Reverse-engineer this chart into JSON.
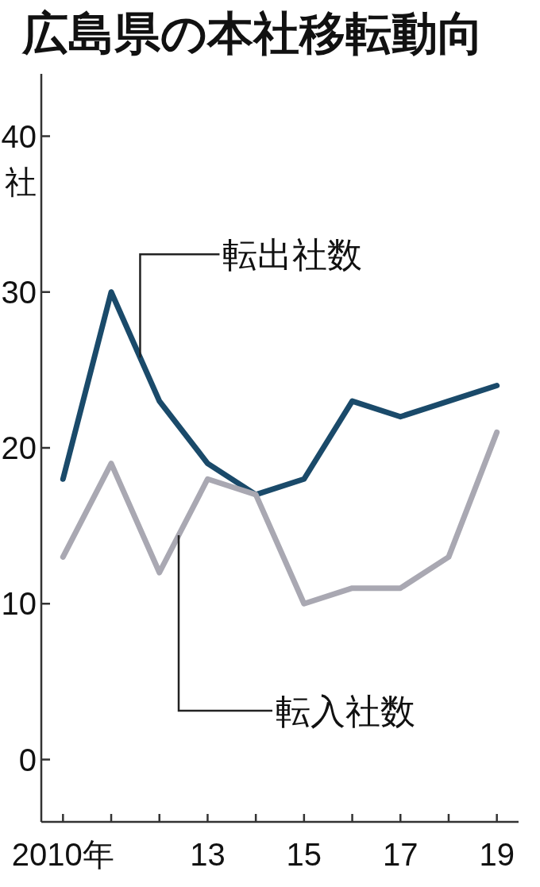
{
  "chart_data": {
    "type": "line",
    "title": "広島県の本社移転動向",
    "ylabel": "社",
    "x": [
      2010,
      2011,
      2012,
      2013,
      2014,
      2015,
      2016,
      2017,
      2018,
      2019
    ],
    "series": [
      {
        "color": "#1a4a6a",
        "values": [
          18,
          30,
          23,
          19,
          17,
          18,
          23,
          22,
          23,
          24
        ]
      },
      {
        "color": "#a9a8b2",
        "values": [
          13,
          19,
          12,
          18,
          17,
          10,
          11,
          11,
          13,
          21
        ]
      }
    ],
    "xlim": [
      2009.55,
      2019.45
    ],
    "xticks": [
      {
        "value": 2010,
        "label": "2010年"
      },
      {
        "value": 2011,
        "label": null
      },
      {
        "value": 2012,
        "label": null
      },
      {
        "value": 2013,
        "label": "13"
      },
      {
        "value": 2014,
        "label": null
      },
      {
        "value": 2015,
        "label": "15"
      },
      {
        "value": 2016,
        "label": null
      },
      {
        "value": 2017,
        "label": "17"
      },
      {
        "value": 2018,
        "label": null
      },
      {
        "value": 2019,
        "label": "19"
      }
    ],
    "ylim": [
      -4,
      44
    ],
    "yticks": [
      0,
      10,
      20,
      30,
      40
    ],
    "annotations": [
      {
        "text": "転出社数",
        "x": 2011.6,
        "y": 25.8
      },
      {
        "text": "転入社数",
        "x": 2012.4,
        "y": 14.4
      }
    ],
    "grid": false
  }
}
